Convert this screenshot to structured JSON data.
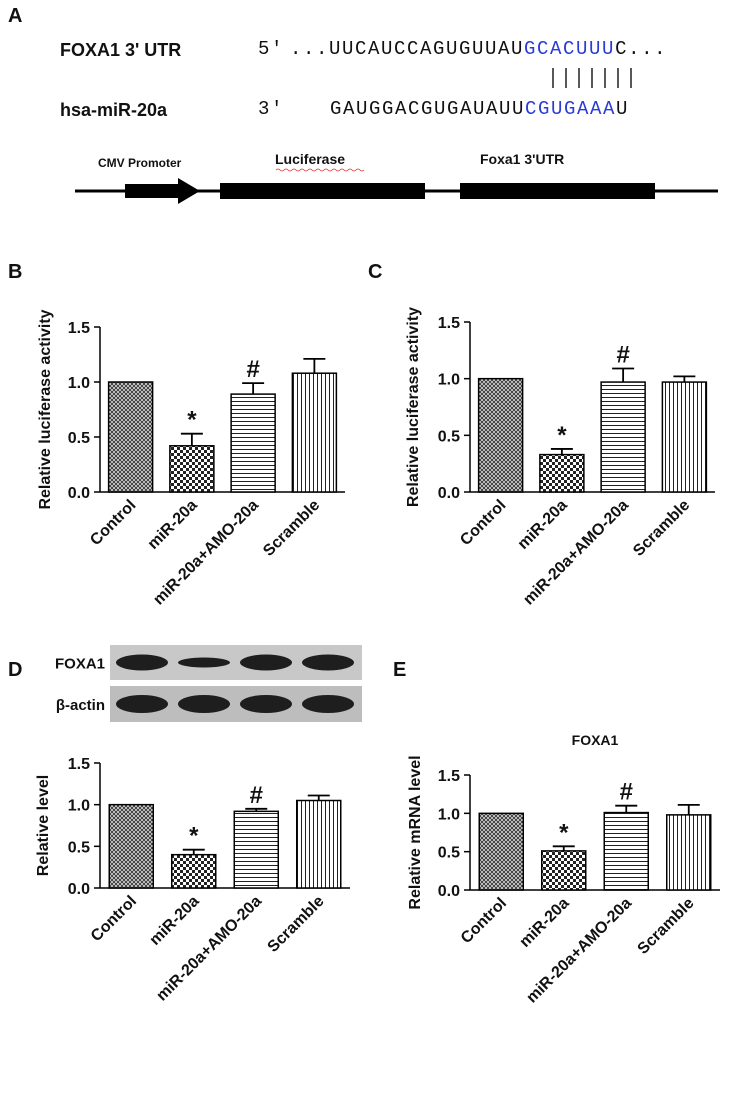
{
  "panel_a": {
    "panel": "A",
    "rows": [
      {
        "name": "FOXA1 3' UTR",
        "end": "5'",
        "seq": [
          "...UUCAUCCAGUGUUAU",
          "GCACUUU",
          "C..."
        ]
      },
      {
        "name": "hsa-miR-20a",
        "end": "3'",
        "seq": [
          "GAUGGACGUGAUAUU",
          "CGUGAAA",
          "U"
        ]
      }
    ],
    "construct": [
      "CMV Promoter",
      "Luciferase",
      "Foxa1 3'UTR"
    ]
  },
  "chart_data": [
    {
      "type": "bar",
      "panel": "B",
      "y_label": "Relative luciferase activity",
      "categories": [
        "Control",
        "miR-20a",
        "miR-20a+AMO-20a",
        "Scramble"
      ],
      "values": [
        1.0,
        0.42,
        0.89,
        1.08
      ],
      "errors": [
        null,
        0.11,
        0.1,
        0.13
      ],
      "value_annotations": [
        null,
        "*",
        "#",
        null
      ],
      "patterns": [
        "crosshatch",
        "checker",
        "horizontal",
        "vertical"
      ],
      "ylim": [
        0,
        1.5
      ],
      "yticks": [
        {
          "value": 0,
          "label": "0.0"
        },
        0.5,
        {
          "value": 1,
          "label": "1.0"
        },
        1.5
      ]
    },
    {
      "type": "bar",
      "panel": "C",
      "y_label": "Relative luciferase activity",
      "categories": [
        "Control",
        "miR-20a",
        "miR-20a+AMO-20a",
        "Scramble"
      ],
      "values": [
        1.0,
        0.33,
        0.97,
        0.97
      ],
      "errors": [
        null,
        0.05,
        0.12,
        0.05
      ],
      "value_annotations": [
        null,
        "*",
        "#",
        null
      ],
      "patterns": [
        "crosshatch",
        "checker",
        "horizontal",
        "vertical"
      ],
      "ylim": [
        0,
        1.5
      ],
      "yticks": [
        {
          "value": 0,
          "label": "0.0"
        },
        0.5,
        {
          "value": 1,
          "label": "1.0"
        },
        1.5
      ]
    },
    {
      "type": "bar",
      "panel": "D",
      "y_label": "Relative level",
      "blot_labels": [
        "FOXA1",
        "β-actin"
      ],
      "categories": [
        "Control",
        "miR-20a",
        "miR-20a+AMO-20a",
        "Scramble"
      ],
      "values": [
        1.0,
        0.4,
        0.92,
        1.05
      ],
      "errors": [
        null,
        0.06,
        0.03,
        0.06
      ],
      "value_annotations": [
        null,
        "*",
        "#",
        null
      ],
      "patterns": [
        "crosshatch",
        "checker",
        "horizontal",
        "vertical"
      ],
      "ylim": [
        0,
        1.5
      ],
      "yticks": [
        {
          "value": 0,
          "label": "0.0"
        },
        0.5,
        {
          "value": 1,
          "label": "1.0"
        },
        1.5
      ]
    },
    {
      "type": "bar",
      "panel": "E",
      "title": "FOXA1",
      "y_label": "Relative mRNA level",
      "categories": [
        "Control",
        "miR-20a",
        "miR-20a+AMO-20a",
        "Scramble"
      ],
      "values": [
        1.0,
        0.51,
        1.01,
        0.98
      ],
      "errors": [
        null,
        0.06,
        0.09,
        0.13
      ],
      "value_annotations": [
        null,
        "*",
        "#",
        null
      ],
      "patterns": [
        "crosshatch",
        "checker",
        "horizontal",
        "vertical"
      ],
      "ylim": [
        0,
        1.5
      ],
      "yticks": [
        {
          "value": 0,
          "label": "0.0"
        },
        0.5,
        {
          "value": 1,
          "label": "1.0"
        },
        1.5
      ]
    }
  ]
}
